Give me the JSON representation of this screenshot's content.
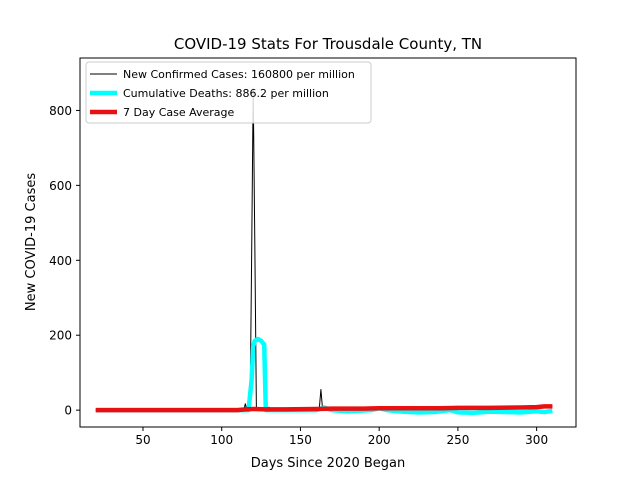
{
  "chart_data": {
    "type": "line",
    "title": "COVID-19 Stats For Trousdale County, TN",
    "xlabel": "Days Since 2020 Began",
    "ylabel": "New COVID-19 Cases",
    "xlim": [
      10,
      325
    ],
    "ylim": [
      -45,
      940
    ],
    "xticks": [
      50,
      100,
      150,
      200,
      250,
      300
    ],
    "yticks": [
      0,
      200,
      400,
      600,
      800
    ],
    "grid": false,
    "legend_position": "top-left",
    "series": [
      {
        "name": "New Confirmed Cases: 160800 per million",
        "color": "#000000",
        "width": 1,
        "points": [
          [
            20,
            0
          ],
          [
            60,
            0
          ],
          [
            90,
            0
          ],
          [
            110,
            0
          ],
          [
            114,
            0
          ],
          [
            115,
            17
          ],
          [
            116,
            0
          ],
          [
            118,
            0
          ],
          [
            119,
            400
          ],
          [
            120,
            860
          ],
          [
            121,
            450
          ],
          [
            122,
            0
          ],
          [
            124,
            0
          ],
          [
            128,
            0
          ],
          [
            130,
            8
          ],
          [
            131,
            0
          ],
          [
            140,
            0
          ],
          [
            160,
            0
          ],
          [
            162,
            4
          ],
          [
            163,
            55
          ],
          [
            164,
            5
          ],
          [
            165,
            0
          ],
          [
            170,
            3
          ],
          [
            180,
            2
          ],
          [
            195,
            6
          ],
          [
            200,
            4
          ],
          [
            210,
            3
          ],
          [
            220,
            5
          ],
          [
            235,
            4
          ],
          [
            240,
            10
          ],
          [
            241,
            5
          ],
          [
            250,
            6
          ],
          [
            260,
            8
          ],
          [
            270,
            5
          ],
          [
            280,
            7
          ],
          [
            290,
            6
          ],
          [
            300,
            8
          ],
          [
            305,
            12
          ],
          [
            310,
            10
          ]
        ]
      },
      {
        "name": "Cumulative Deaths: 886.2 per million",
        "color": "#00ffff",
        "width": 4.5,
        "points": [
          [
            20,
            0
          ],
          [
            90,
            0
          ],
          [
            115,
            0
          ],
          [
            117,
            0
          ],
          [
            119,
            80
          ],
          [
            120,
            170
          ],
          [
            121,
            185
          ],
          [
            123,
            190
          ],
          [
            125,
            185
          ],
          [
            127,
            175
          ],
          [
            128,
            0
          ],
          [
            130,
            0
          ],
          [
            160,
            0
          ],
          [
            165,
            7
          ],
          [
            170,
            0
          ],
          [
            180,
            -3
          ],
          [
            195,
            0
          ],
          [
            200,
            5
          ],
          [
            205,
            0
          ],
          [
            215,
            -4
          ],
          [
            225,
            -6
          ],
          [
            235,
            -5
          ],
          [
            245,
            0
          ],
          [
            250,
            -6
          ],
          [
            260,
            -7
          ],
          [
            270,
            -4
          ],
          [
            280,
            -5
          ],
          [
            290,
            -6
          ],
          [
            300,
            -3
          ],
          [
            305,
            -5
          ],
          [
            310,
            -2
          ]
        ]
      },
      {
        "name": "7 Day Case Average",
        "color": "#e81010",
        "width": 4.5,
        "points": [
          [
            20,
            0
          ],
          [
            60,
            0
          ],
          [
            90,
            0
          ],
          [
            110,
            0
          ],
          [
            115,
            2
          ],
          [
            120,
            3
          ],
          [
            128,
            2
          ],
          [
            140,
            2
          ],
          [
            160,
            3
          ],
          [
            170,
            4
          ],
          [
            190,
            4
          ],
          [
            200,
            5
          ],
          [
            220,
            5
          ],
          [
            240,
            5
          ],
          [
            250,
            6
          ],
          [
            270,
            6
          ],
          [
            290,
            7
          ],
          [
            300,
            8
          ],
          [
            305,
            10
          ],
          [
            310,
            10
          ]
        ]
      }
    ]
  }
}
